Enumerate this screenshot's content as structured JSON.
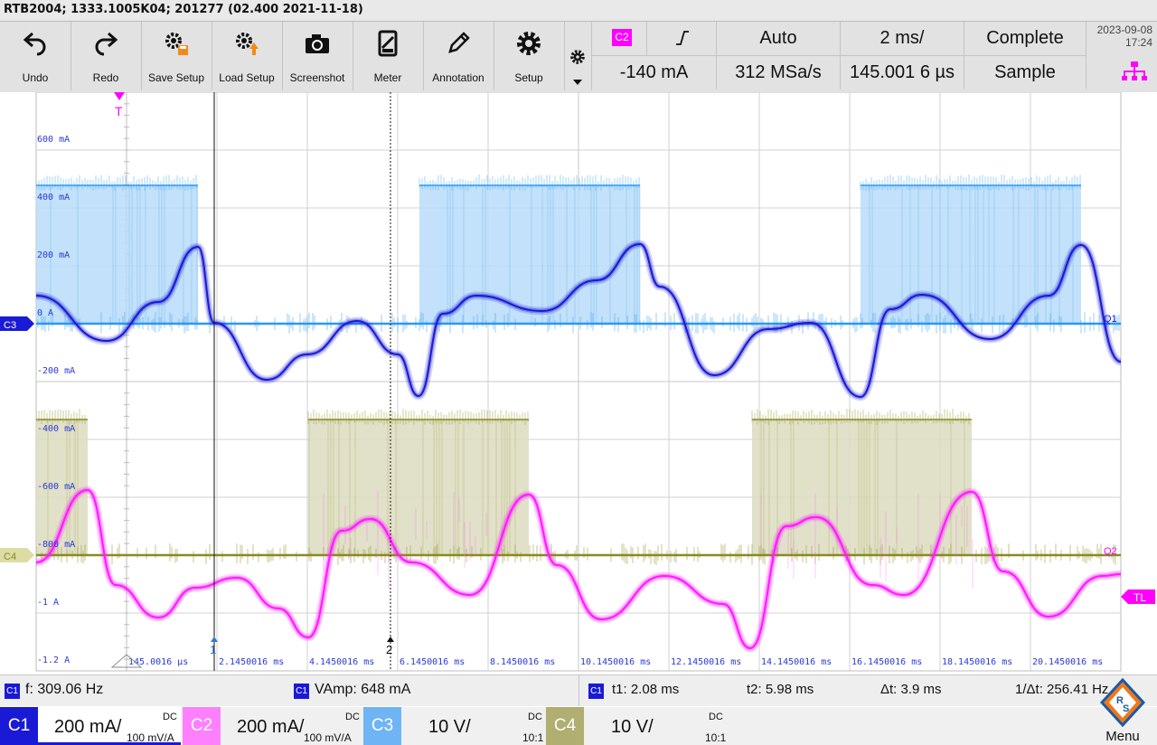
{
  "title_bar": {
    "text": "RTB2004; 1333.1005K04; 201277 (02.400 2021-11-18)"
  },
  "toolbar": {
    "buttons": [
      {
        "label": "Undo",
        "icon": "undo-icon"
      },
      {
        "label": "Redo",
        "icon": "redo-icon"
      },
      {
        "label": "Save Setup",
        "icon": "save-setup-icon"
      },
      {
        "label": "Load Setup",
        "icon": "load-setup-icon"
      },
      {
        "label": "Screenshot",
        "icon": "camera-icon"
      },
      {
        "label": "Meter",
        "icon": "meter-icon"
      },
      {
        "label": "Annotation",
        "icon": "pen-icon"
      },
      {
        "label": "Setup",
        "icon": "gear-icon"
      }
    ]
  },
  "trigger": {
    "source": "C2",
    "slope_icon": "rising-edge-icon",
    "level": "-140 mA",
    "mode": "Auto"
  },
  "acquisition": {
    "sample_rate": "312 MSa/s",
    "time_scale": "2 ms/",
    "time_position": "145.001 6 µs",
    "status": "Complete",
    "mode": "Sample"
  },
  "datetime": {
    "date": "2023-09-08",
    "time": "17:24"
  },
  "colors": {
    "c1": "#1a1ad6",
    "c2": "#ff1aff",
    "c3": "#2a9af0",
    "c4": "#8a8a1c",
    "accent": "#1a1ad6",
    "grid": "#cfcfcf"
  },
  "y_axis_labels": [
    "600 mA",
    "400 mA",
    "200 mA",
    "0 A",
    "-200 mA",
    "-400 mA",
    "-600 mA",
    "-800 mA",
    "-1 A",
    "-1.2 A"
  ],
  "x_axis_labels": [
    "145.0016 µs",
    "2.1450016 ms",
    "4.1450016 ms",
    "6.1450016 ms",
    "8.1450016 ms",
    "10.1450016 ms",
    "12.1450016 ms",
    "14.1450016 ms",
    "16.1450016 ms",
    "18.1450016 ms",
    "20.1450016 ms"
  ],
  "markers": {
    "trigger": "T",
    "cursor1": "1",
    "cursor2": "2",
    "c3_offset": "C3",
    "c4_offset": "C4",
    "ref1": "Q1",
    "ref2": "Q2",
    "trigger_level": "TL"
  },
  "measurements": {
    "freq": {
      "channel": "C1",
      "text": "f: 309.06 Hz"
    },
    "vamp": {
      "channel": "C1",
      "text": "VAmp: 648 mA"
    },
    "cursors": {
      "channel": "C1",
      "t1": "t1: 2.08 ms",
      "t2": "t2: 5.98 ms",
      "dt": "Δt: 3.9 ms",
      "inv_dt": "1/Δt: 256.41 Hz"
    }
  },
  "channels": [
    {
      "name": "C1",
      "scale": "200 mA/",
      "coupling": "DC",
      "sub": "100 mV/A"
    },
    {
      "name": "C2",
      "scale": "200 mA/",
      "coupling": "DC",
      "sub": "100 mV/A"
    },
    {
      "name": "C3",
      "scale": "10 V/",
      "coupling": "DC",
      "sub": "10:1"
    },
    {
      "name": "C4",
      "scale": "10 V/",
      "coupling": "DC",
      "sub": "10:1"
    }
  ],
  "menu": {
    "label": "Menu"
  }
}
